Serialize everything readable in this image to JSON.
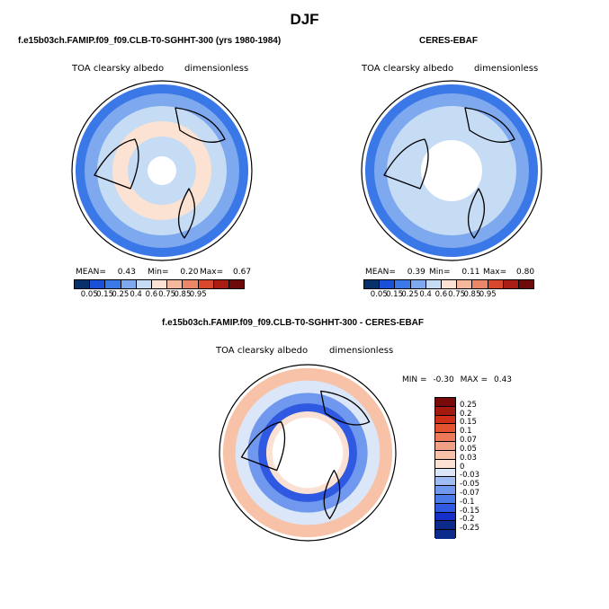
{
  "page": {
    "title": "DJF"
  },
  "palette": {
    "seq": [
      "#08306b",
      "#1a4fd8",
      "#3b78e7",
      "#7ea9ee",
      "#c5dcf4",
      "#fbe2d2",
      "#f4b89d",
      "#ec8668",
      "#d9472d",
      "#a91c14",
      "#6e0a0a"
    ],
    "diff": [
      "#0b2a8a",
      "#1430c8",
      "#2f59e0",
      "#4a7ae8",
      "#6f98ee",
      "#9fbcf3",
      "#dbe7f8",
      "#fbe1d3",
      "#f7c2a8",
      "#f2a085",
      "#ec7a58",
      "#e4532f",
      "#cf2f16",
      "#a51a0e",
      "#790a0a"
    ]
  },
  "chart_data": [
    {
      "type": "heatmap",
      "projection": "polar-stereographic",
      "panel_title": "f.e15b03ch.FAMIP.f09_f09.CLB-T0-SGHHT-300 (yrs 1980-1984)",
      "variable": "TOA clearsky albedo",
      "units": "dimensionless",
      "stats": {
        "mean_label": "MEAN=",
        "mean": "0.43",
        "min_label": "Min=",
        "min": "0.20",
        "max_label": "Max=",
        "max": "0.67"
      },
      "levels": [
        "0.05",
        "0.15",
        "0.25",
        "0.4",
        "0.6",
        "0.75",
        "0.85",
        "0.95"
      ],
      "rings": [
        {
          "r": 0.96,
          "level": 2
        },
        {
          "r": 0.86,
          "level": 3
        },
        {
          "r": 0.72,
          "level": 4
        },
        {
          "r": 0.55,
          "level": 5
        },
        {
          "r": 0.38,
          "level": 4
        },
        {
          "r": 0.2,
          "level": 4
        }
      ]
    },
    {
      "type": "heatmap",
      "projection": "polar-stereographic",
      "panel_title": "CERES-EBAF",
      "variable": "TOA clearsky albedo",
      "units": "dimensionless",
      "stats": {
        "mean_label": "MEAN=",
        "mean": "0.39",
        "min_label": "Min=",
        "min": "0.11",
        "max_label": "Max=",
        "max": "0.80"
      },
      "levels": [
        "0.05",
        "0.15",
        "0.25",
        "0.4",
        "0.6",
        "0.75",
        "0.85",
        "0.95"
      ],
      "rings": [
        {
          "r": 0.96,
          "level": 2
        },
        {
          "r": 0.86,
          "level": 3
        },
        {
          "r": 0.72,
          "level": 4
        },
        {
          "r": 0.58,
          "level": 4
        },
        {
          "r": 0.42,
          "level": 4
        }
      ]
    },
    {
      "type": "heatmap",
      "projection": "polar-stereographic",
      "panel_title": "f.e15b03ch.FAMIP.f09_f09.CLB-T0-SGHHT-300 - CERES-EBAF",
      "variable": "TOA clearsky albedo",
      "units": "dimensionless",
      "stats": {
        "min_label": "MIN =",
        "min": "-0.30",
        "max_label": "MAX =",
        "max": "0.43"
      },
      "levels": [
        "0.25",
        "0.2",
        "0.15",
        "0.1",
        "0.07",
        "0.05",
        "0.03",
        "0",
        "-0.03",
        "-0.05",
        "-0.07",
        "-0.1",
        "-0.15",
        "-0.2",
        "-0.25"
      ],
      "rings": [
        {
          "r": 0.96,
          "level": 6
        },
        {
          "r": 0.82,
          "level": 8
        },
        {
          "r": 0.68,
          "level": 10
        },
        {
          "r": 0.56,
          "level": 12
        },
        {
          "r": 0.47,
          "level": 7
        }
      ]
    }
  ]
}
